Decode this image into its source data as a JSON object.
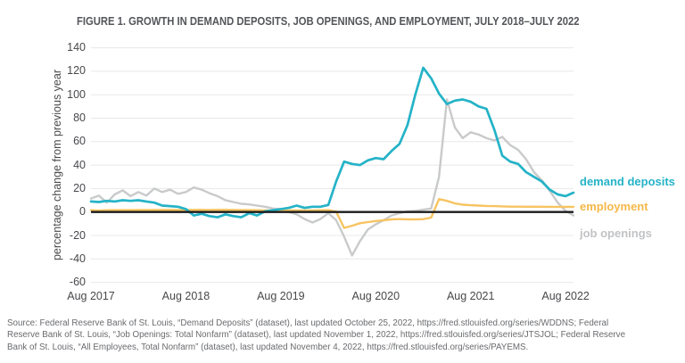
{
  "title": "FIGURE 1. GROWTH IN DEMAND DEPOSITS, JOB OPENINGS, AND EMPLOYMENT, JULY 2018–JULY 2022",
  "y_axis": {
    "label": "percentage change from previous year",
    "ticks": [
      140,
      120,
      100,
      80,
      60,
      40,
      20,
      0,
      -20,
      -40,
      -60
    ]
  },
  "x_axis": {
    "labels": [
      "Aug 2017",
      "Aug 2018",
      "Aug 2019",
      "Aug 2020",
      "Aug 2021",
      "Aug 2022"
    ]
  },
  "legend": [
    {
      "label": "demand deposits",
      "color": "#24b3c7"
    },
    {
      "label": "employment",
      "color": "#f5b84a"
    },
    {
      "label": "job openings",
      "color": "#c2c3c5"
    }
  ],
  "source": {
    "lines": [
      "Source: Federal Reserve Bank of St. Louis, “Demand Deposits” (dataset), last updated October 25, 2022, https://fred.stlouisfed.org/series/WDDNS; Federal",
      "Reserve Bank of St. Louis, “Job Openings: Total Nonfarm” (dataset), last updated November 1, 2022, https://fred.stlouisfed.org/series/JTSJOL; Federal Reserve",
      "Bank of St. Louis, “All Employees, Total Nonfarm” (dataset), last updated November 4, 2022, https://fred.stlouisfed.org/series/PAYEMS."
    ]
  },
  "chart_data": {
    "type": "line",
    "title": "FIGURE 1. GROWTH IN DEMAND DEPOSITS, JOB OPENINGS, AND EMPLOYMENT, JULY 2018–JULY 2022",
    "ylabel": "percentage change from previous year",
    "ylim": [
      -60,
      140
    ],
    "grid": "horizontal",
    "zero_line": true,
    "legend_position": "right",
    "x_frequency": "monthly",
    "x_start": "2017-08",
    "x_end": "2022-09",
    "x_tick_labels": [
      "Aug 2017",
      "Aug 2018",
      "Aug 2019",
      "Aug 2020",
      "Aug 2021",
      "Aug 2022"
    ],
    "series": [
      {
        "name": "demand deposits",
        "color": "#24b3c7",
        "values": [
          9,
          8.5,
          9.5,
          9,
          10,
          9.5,
          10,
          9,
          8,
          5.5,
          5,
          4.5,
          2.5,
          -3,
          -1.5,
          -3.5,
          -4.5,
          -2,
          -3.5,
          -4.5,
          -1,
          -3,
          0.5,
          1.5,
          2.5,
          3.5,
          5.5,
          3.5,
          4.5,
          4.5,
          6,
          26,
          43,
          41,
          40,
          44,
          46,
          45,
          52,
          58,
          74,
          100,
          123,
          114,
          101,
          92,
          95,
          96,
          94,
          90,
          88,
          70,
          48,
          43,
          41,
          34,
          30,
          26,
          19,
          15,
          13.5,
          16.5
        ]
      },
      {
        "name": "employment",
        "color": "#f7c461",
        "values": [
          1.5,
          1.2,
          1.5,
          1.6,
          1.6,
          1.6,
          1.7,
          1.7,
          1.7,
          1.8,
          1.8,
          1.7,
          1.7,
          1.8,
          1.8,
          1.7,
          1.8,
          1.8,
          1.7,
          1.6,
          1.6,
          1.5,
          1.4,
          1.4,
          1.4,
          1.4,
          1.3,
          1.4,
          1.3,
          1.5,
          1.6,
          0.3,
          -13.5,
          -11.7,
          -9.6,
          -8.6,
          -7.7,
          -7,
          -6.3,
          -6,
          -6.2,
          -6.3,
          -6.1,
          -4.8,
          11,
          9.5,
          7.3,
          6.2,
          5.8,
          5.5,
          5.2,
          5,
          4.8,
          4.6,
          4.6,
          4.5,
          4.5,
          4.5,
          4.4,
          4.4,
          4.3,
          4.4
        ]
      },
      {
        "name": "job openings",
        "color": "#c9cacb",
        "values": [
          11.5,
          14,
          8,
          15,
          18.5,
          13.5,
          17,
          14,
          20,
          17,
          19,
          15.5,
          17,
          21,
          19,
          16,
          13.5,
          10,
          8.5,
          7,
          6.5,
          5.5,
          4.5,
          3,
          2.5,
          0,
          -2,
          -6,
          -9,
          -6,
          -1,
          -7,
          -21,
          -37,
          -25,
          -15,
          -10.5,
          -7,
          -3,
          -1,
          0.5,
          1,
          2,
          3,
          30,
          96,
          72,
          63,
          68,
          66,
          63,
          61,
          64,
          57,
          53,
          45,
          34,
          27,
          18,
          8,
          1,
          -3
        ]
      }
    ]
  }
}
